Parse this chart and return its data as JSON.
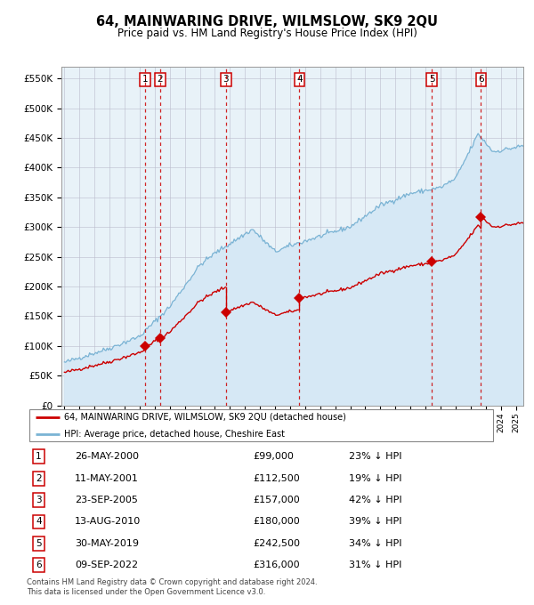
{
  "title": "64, MAINWARING DRIVE, WILMSLOW, SK9 2QU",
  "subtitle": "Price paid vs. HM Land Registry's House Price Index (HPI)",
  "red_label": "64, MAINWARING DRIVE, WILMSLOW, SK9 2QU (detached house)",
  "blue_label": "HPI: Average price, detached house, Cheshire East",
  "footnote1": "Contains HM Land Registry data © Crown copyright and database right 2024.",
  "footnote2": "This data is licensed under the Open Government Licence v3.0.",
  "sales": [
    {
      "num": 1,
      "date": "26-MAY-2000",
      "year": 2000.38,
      "price": 99000,
      "pct": "23% ↓ HPI"
    },
    {
      "num": 2,
      "date": "11-MAY-2001",
      "year": 2001.36,
      "price": 112500,
      "pct": "19% ↓ HPI"
    },
    {
      "num": 3,
      "date": "23-SEP-2005",
      "year": 2005.73,
      "price": 157000,
      "pct": "42% ↓ HPI"
    },
    {
      "num": 4,
      "date": "13-AUG-2010",
      "year": 2010.62,
      "price": 180000,
      "pct": "39% ↓ HPI"
    },
    {
      "num": 5,
      "date": "30-MAY-2019",
      "year": 2019.41,
      "price": 242500,
      "pct": "34% ↓ HPI"
    },
    {
      "num": 6,
      "date": "09-SEP-2022",
      "year": 2022.69,
      "price": 316000,
      "pct": "31% ↓ HPI"
    }
  ],
  "hpi_color": "#7ab3d4",
  "hpi_fill_color": "#d6e8f5",
  "price_color": "#cc0000",
  "dashed_color": "#cc0000",
  "bg_color": "#e8f2f8",
  "ylim": [
    0,
    570000
  ],
  "yticks": [
    0,
    50000,
    100000,
    150000,
    200000,
    250000,
    300000,
    350000,
    400000,
    450000,
    500000,
    550000
  ],
  "xlim_start": 1994.8,
  "xlim_end": 2025.5
}
